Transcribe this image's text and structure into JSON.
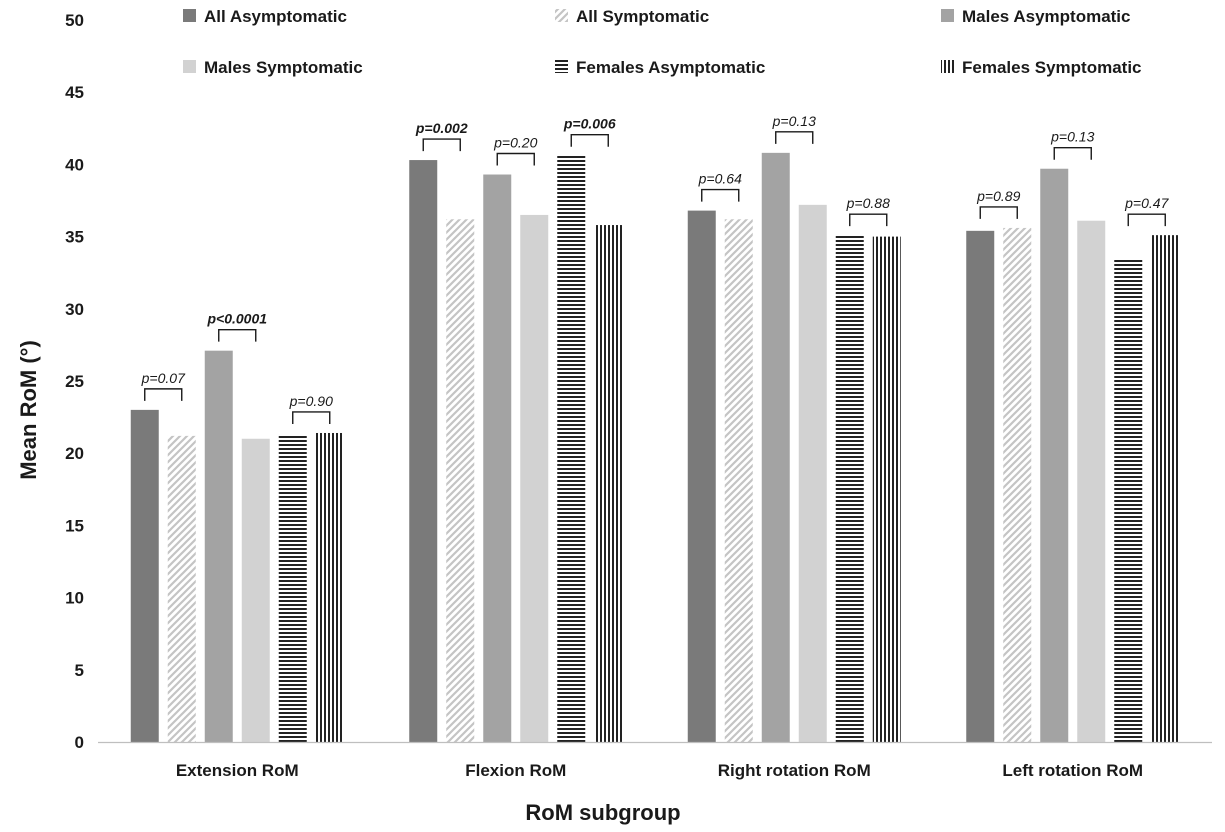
{
  "chart_data": {
    "type": "bar",
    "title": "",
    "xlabel": "RoM subgroup",
    "ylabel": "Mean RoM (°)",
    "ylim": [
      0,
      50
    ],
    "ytick_step": 5,
    "grid": false,
    "legend_position": "top",
    "categories": [
      "Extension RoM",
      "Flexion RoM",
      "Right rotation RoM",
      "Left rotation RoM"
    ],
    "series": [
      {
        "name": "All Asymptomatic",
        "values": [
          23.0,
          40.3,
          36.8,
          35.4
        ],
        "color": "#7a7a7a",
        "pattern": "solid"
      },
      {
        "name": "All Symptomatic",
        "values": [
          21.2,
          36.2,
          36.2,
          35.6
        ],
        "color": "#c8c8c8",
        "pattern": "diagonal"
      },
      {
        "name": "Males Asymptomatic",
        "values": [
          27.1,
          39.3,
          40.8,
          39.7
        ],
        "color": "#a3a3a3",
        "pattern": "solid"
      },
      {
        "name": "Males Symptomatic",
        "values": [
          21.0,
          36.5,
          37.2,
          36.1
        ],
        "color": "#d2d2d2",
        "pattern": "solid"
      },
      {
        "name": "Females Asymptomatic",
        "values": [
          21.2,
          40.6,
          35.1,
          33.5
        ],
        "color": "#222222",
        "pattern": "horizontal"
      },
      {
        "name": "Females Symptomatic",
        "values": [
          21.4,
          35.8,
          35.0,
          35.1
        ],
        "color": "#222222",
        "pattern": "vertical"
      }
    ],
    "annotations": [
      {
        "category": 0,
        "pair": [
          0,
          1
        ],
        "text": "p=0.07",
        "bold": false
      },
      {
        "category": 0,
        "pair": [
          2,
          3
        ],
        "text": "p<0.0001",
        "bold": true
      },
      {
        "category": 0,
        "pair": [
          4,
          5
        ],
        "text": "p=0.90",
        "bold": false
      },
      {
        "category": 1,
        "pair": [
          0,
          1
        ],
        "text": "p=0.002",
        "bold": true
      },
      {
        "category": 1,
        "pair": [
          2,
          3
        ],
        "text": "p=0.20",
        "bold": false
      },
      {
        "category": 1,
        "pair": [
          4,
          5
        ],
        "text": "p=0.006",
        "bold": true
      },
      {
        "category": 2,
        "pair": [
          0,
          1
        ],
        "text": "p=0.64",
        "bold": false
      },
      {
        "category": 2,
        "pair": [
          2,
          3
        ],
        "text": "p=0.13",
        "bold": false
      },
      {
        "category": 2,
        "pair": [
          4,
          5
        ],
        "text": "p=0.88",
        "bold": false
      },
      {
        "category": 3,
        "pair": [
          0,
          1
        ],
        "text": "p=0.89",
        "bold": false
      },
      {
        "category": 3,
        "pair": [
          2,
          3
        ],
        "text": "p=0.13",
        "bold": false
      },
      {
        "category": 3,
        "pair": [
          4,
          5
        ],
        "text": "p=0.47",
        "bold": false
      }
    ]
  }
}
